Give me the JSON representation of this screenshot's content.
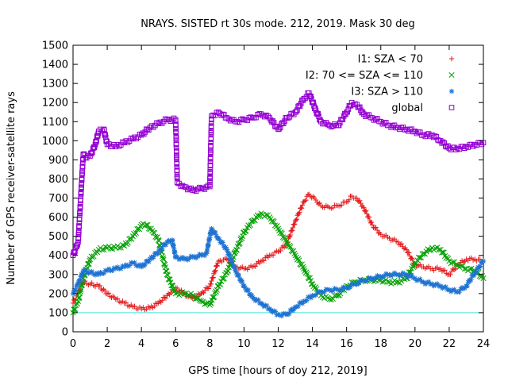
{
  "chart_data": {
    "type": "scatter",
    "title": "NRAYS. SISTED rt 30s mode. 212, 2019. Mask 30 deg",
    "xlabel": "GPS time [hours of doy 212, 2019]",
    "ylabel": "Number of GPS receiver-satellite rays",
    "xlim": [
      0,
      24
    ],
    "ylim": [
      0,
      1500
    ],
    "xticks": [
      "0",
      "2",
      "4",
      "6",
      "8",
      "10",
      "12",
      "14",
      "16",
      "18",
      "20",
      "22",
      "24"
    ],
    "yticks": [
      "0",
      "100",
      "200",
      "300",
      "400",
      "500",
      "600",
      "700",
      "800",
      "900",
      "1000",
      "1100",
      "1200",
      "1300",
      "1400",
      "1500"
    ],
    "grid": false,
    "legend_position": "top-right",
    "reference_line": {
      "y": 100,
      "color": "#40e0d0"
    },
    "series": [
      {
        "name": "I1: SZA < 70",
        "symbol": "+",
        "color": "#e41a1c",
        "x": [
          0,
          0.3,
          0.6,
          1,
          1.5,
          2,
          2.5,
          3,
          3.5,
          4,
          4.5,
          5,
          5.5,
          6,
          6.5,
          7,
          7.5,
          8,
          8.5,
          9,
          9.5,
          10,
          10.5,
          11,
          11.5,
          12,
          12.5,
          13,
          13.5,
          13.8,
          14.2,
          14.5,
          15,
          15.5,
          16,
          16.3,
          16.6,
          17,
          17.5,
          18,
          18.5,
          19,
          19.5,
          20,
          20.5,
          21,
          21.5,
          22,
          22.5,
          23,
          23.5,
          24
        ],
        "y": [
          150,
          200,
          260,
          250,
          240,
          200,
          170,
          150,
          130,
          120,
          125,
          150,
          190,
          230,
          200,
          175,
          200,
          240,
          370,
          380,
          340,
          330,
          340,
          370,
          400,
          420,
          460,
          580,
          680,
          720,
          690,
          660,
          650,
          660,
          680,
          710,
          700,
          650,
          560,
          510,
          490,
          470,
          430,
          350,
          340,
          330,
          330,
          300,
          350,
          380,
          380,
          370
        ]
      },
      {
        "name": "I2: 70 <= SZA <= 110",
        "symbol": "x",
        "color": "#00a000",
        "x": [
          0,
          0.3,
          0.6,
          1,
          1.5,
          2,
          2.5,
          3,
          3.5,
          4,
          4.3,
          4.7,
          5,
          5.5,
          6,
          6.5,
          7,
          7.5,
          8,
          8.5,
          9,
          9.5,
          10,
          10.5,
          11,
          11.5,
          12,
          12.5,
          13,
          13.5,
          14,
          14.5,
          15,
          15.5,
          16,
          16.5,
          17,
          17.5,
          18,
          18.5,
          19,
          19.5,
          20,
          20.5,
          21,
          21.5,
          22,
          22.5,
          23,
          23.5,
          24
        ],
        "y": [
          100,
          160,
          280,
          380,
          430,
          440,
          440,
          450,
          500,
          560,
          560,
          520,
          480,
          300,
          200,
          200,
          190,
          160,
          140,
          240,
          310,
          420,
          520,
          580,
          620,
          600,
          540,
          470,
          400,
          330,
          250,
          190,
          170,
          190,
          240,
          260,
          270,
          270,
          270,
          260,
          260,
          280,
          360,
          410,
          440,
          430,
          370,
          350,
          330,
          320,
          280
        ]
      },
      {
        "name": "I3: SZA > 110",
        "symbol": "*",
        "color": "#1e73d2",
        "x": [
          0,
          0.3,
          0.6,
          1,
          1.5,
          2,
          2.5,
          3,
          3.5,
          4,
          4.5,
          5,
          5.5,
          5.8,
          6,
          6.5,
          7,
          7.5,
          7.8,
          8.1,
          8.5,
          9,
          9.5,
          10,
          10.5,
          11,
          11.5,
          12,
          12.5,
          13,
          13.5,
          14,
          14.5,
          15,
          15.5,
          16,
          16.5,
          17,
          17.5,
          18,
          18.5,
          19,
          19.5,
          20,
          20.5,
          21,
          21.5,
          22,
          22.5,
          23,
          23.5,
          24
        ],
        "y": [
          200,
          250,
          320,
          310,
          300,
          320,
          330,
          340,
          360,
          340,
          380,
          420,
          470,
          480,
          390,
          380,
          390,
          400,
          410,
          540,
          490,
          430,
          320,
          240,
          180,
          150,
          120,
          90,
          90,
          130,
          160,
          190,
          210,
          220,
          220,
          230,
          250,
          270,
          280,
          290,
          300,
          300,
          300,
          280,
          260,
          250,
          240,
          220,
          210,
          240,
          310,
          370
        ]
      },
      {
        "name": "global",
        "symbol": "□",
        "color": "#9400d3",
        "x": [
          0,
          0.3,
          0.5,
          0.6,
          0.8,
          1,
          1.3,
          1.5,
          1.8,
          2,
          2.5,
          3,
          3.5,
          4,
          4.5,
          5,
          5.5,
          6,
          6.1,
          6.5,
          7,
          7.5,
          8,
          8.1,
          8.5,
          9,
          9.5,
          10,
          10.5,
          11,
          11.5,
          12,
          12.5,
          13,
          13.5,
          13.8,
          14.2,
          14.5,
          15,
          15.5,
          16,
          16.3,
          16.6,
          17,
          17.5,
          18,
          18.5,
          19,
          19.5,
          20,
          20.5,
          21,
          21.5,
          22,
          22.5,
          23,
          23.5,
          24
        ],
        "y": [
          400,
          470,
          780,
          930,
          910,
          920,
          980,
          1050,
          1060,
          980,
          970,
          990,
          1010,
          1030,
          1070,
          1090,
          1110,
          1110,
          780,
          760,
          740,
          750,
          760,
          1130,
          1150,
          1120,
          1100,
          1110,
          1120,
          1140,
          1120,
          1060,
          1120,
          1150,
          1220,
          1250,
          1160,
          1100,
          1080,
          1080,
          1150,
          1200,
          1190,
          1140,
          1120,
          1100,
          1080,
          1070,
          1060,
          1050,
          1030,
          1030,
          1000,
          960,
          960,
          970,
          980,
          990
        ]
      }
    ]
  }
}
